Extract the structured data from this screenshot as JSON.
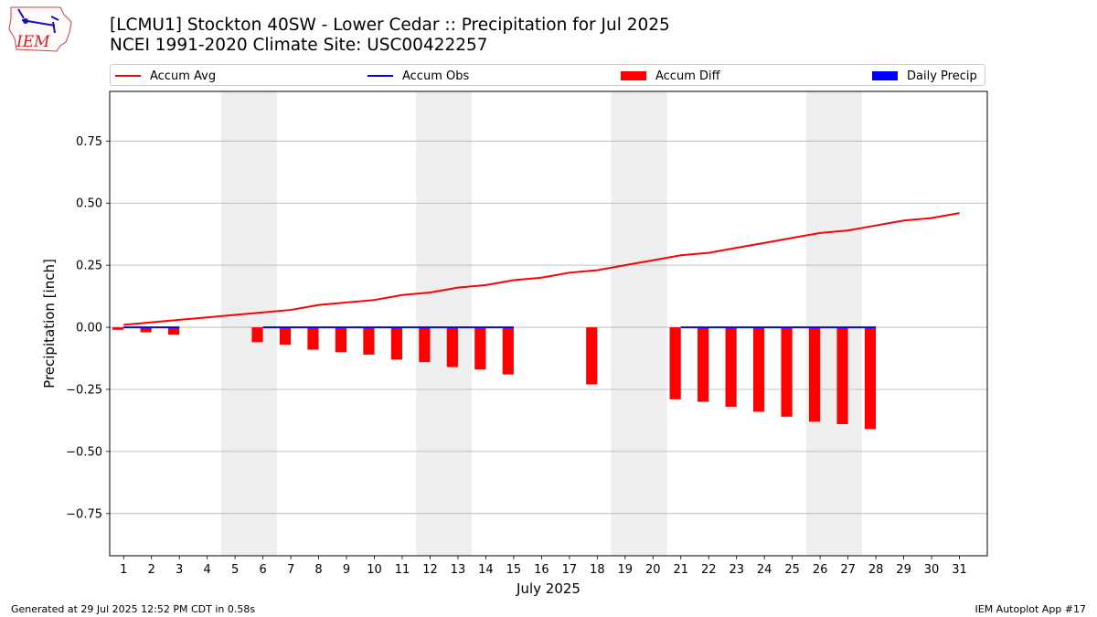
{
  "header": {
    "logo_text": "IEM",
    "title_line1": "[LCMU1] Stockton 40SW - Lower Cedar :: Precipitation for Jul 2025",
    "title_line2": "NCEI 1991-2020 Climate Site: USC00422257"
  },
  "legend": {
    "items": [
      {
        "label": "Accum Avg",
        "kind": "line",
        "color": "#ff0000"
      },
      {
        "label": "Accum Obs",
        "kind": "line",
        "color": "#0000ff"
      },
      {
        "label": "Accum Diff",
        "kind": "patch",
        "color": "#ff0000"
      },
      {
        "label": "Daily Precip",
        "kind": "patch",
        "color": "#0000ff"
      }
    ]
  },
  "footer": {
    "left": "Generated at 29 Jul 2025 12:52 PM CDT in 0.58s",
    "right": "IEM Autoplot App #17"
  },
  "chart_data": {
    "type": "line",
    "title": "[LCMU1] Stockton 40SW - Lower Cedar :: Precipitation for Jul 2025",
    "subtitle": "NCEI 1991-2020 Climate Site: USC00422257",
    "xlabel": "July 2025",
    "ylabel": "Precipitation [inch]",
    "xlim": [
      0.5,
      32
    ],
    "ylim": [
      -0.92,
      0.95
    ],
    "x_ticks": [
      1,
      2,
      3,
      4,
      5,
      6,
      7,
      8,
      9,
      10,
      11,
      12,
      13,
      14,
      15,
      16,
      17,
      18,
      19,
      20,
      21,
      22,
      23,
      24,
      25,
      26,
      27,
      28,
      29,
      30,
      31
    ],
    "y_ticks": [
      -0.75,
      -0.5,
      -0.25,
      0.0,
      0.25,
      0.5,
      0.75
    ],
    "y_tick_labels": [
      "−0.75",
      "−0.50",
      "−0.25",
      "0.00",
      "0.25",
      "0.50",
      "0.75"
    ],
    "grid": "horizontal",
    "legend_position": "top",
    "weekend_shading": [
      [
        4.5,
        6.5
      ],
      [
        11.5,
        13.5
      ],
      [
        18.5,
        20.5
      ],
      [
        25.5,
        27.5
      ]
    ],
    "colors": {
      "avg": "#ff0000",
      "obs": "#0000ff",
      "diff": "#ff0000",
      "daily": "#0000ff",
      "shade": "#eeeeee"
    },
    "series": [
      {
        "name": "Accum Avg",
        "type": "line",
        "x": [
          1,
          2,
          3,
          4,
          5,
          6,
          7,
          8,
          9,
          10,
          11,
          12,
          13,
          14,
          15,
          16,
          17,
          18,
          19,
          20,
          21,
          22,
          23,
          24,
          25,
          26,
          27,
          28,
          29,
          30,
          31
        ],
        "values": [
          0.01,
          0.02,
          0.03,
          0.04,
          0.05,
          0.06,
          0.07,
          0.09,
          0.1,
          0.11,
          0.13,
          0.14,
          0.16,
          0.17,
          0.19,
          0.2,
          0.22,
          0.23,
          0.25,
          0.27,
          0.29,
          0.3,
          0.32,
          0.34,
          0.36,
          0.38,
          0.39,
          0.41,
          0.43,
          0.44,
          0.46
        ]
      },
      {
        "name": "Accum Obs",
        "type": "line",
        "segments": [
          {
            "x": [
              1,
              2,
              3
            ],
            "values": [
              0,
              0,
              0
            ]
          },
          {
            "x": [
              6,
              7,
              8,
              9,
              10,
              11,
              12,
              13,
              14,
              15
            ],
            "values": [
              0,
              0,
              0,
              0,
              0,
              0,
              0,
              0,
              0,
              0
            ]
          },
          {
            "x": [
              21,
              22,
              23,
              24,
              25,
              26,
              27,
              28
            ],
            "values": [
              0,
              0,
              0,
              0,
              0,
              0,
              0,
              0
            ]
          }
        ]
      },
      {
        "name": "Accum Diff",
        "type": "bar",
        "x": [
          1,
          2,
          3,
          6,
          7,
          8,
          9,
          10,
          11,
          12,
          13,
          14,
          15,
          18,
          21,
          22,
          23,
          24,
          25,
          26,
          27,
          28
        ],
        "values": [
          -0.01,
          -0.02,
          -0.03,
          -0.06,
          -0.07,
          -0.09,
          -0.1,
          -0.11,
          -0.13,
          -0.14,
          -0.16,
          -0.17,
          -0.19,
          -0.23,
          -0.29,
          -0.3,
          -0.32,
          -0.34,
          -0.36,
          -0.38,
          -0.39,
          -0.41
        ]
      },
      {
        "name": "Daily Precip",
        "type": "bar",
        "x": [
          1,
          2,
          3,
          6,
          7,
          8,
          9,
          10,
          11,
          12,
          13,
          14,
          15,
          18,
          21,
          22,
          23,
          24,
          25,
          26,
          27,
          28
        ],
        "values": [
          0,
          0,
          0,
          0,
          0,
          0,
          0,
          0,
          0,
          0,
          0,
          0,
          0,
          0,
          0,
          0,
          0,
          0,
          0,
          0,
          0,
          0
        ]
      }
    ]
  }
}
